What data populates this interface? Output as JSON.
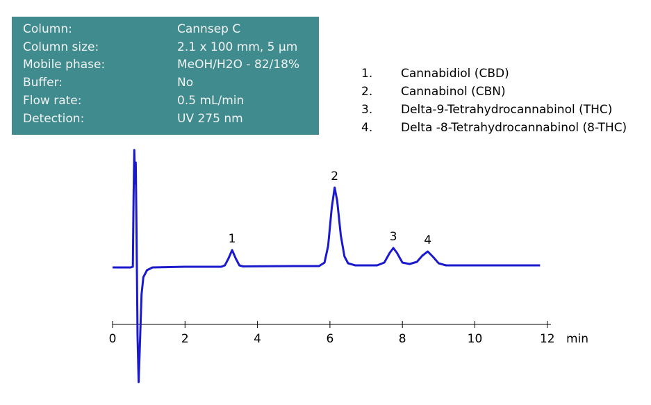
{
  "info_box": {
    "rows": [
      [
        "Column:",
        "Cannsep C"
      ],
      [
        "Column size:",
        "2.1 x 100 mm, 5 µm"
      ],
      [
        "Mobile phase:",
        "MeOH/H2O - 82/18%"
      ],
      [
        "Buffer:",
        "No"
      ],
      [
        "Flow  rate:",
        "0.5 mL/min"
      ],
      [
        "Detection:",
        "UV 275 nm"
      ]
    ]
  },
  "peak_list": [
    {
      "number": "1.",
      "name": "Cannabidiol (CBD)"
    },
    {
      "number": "2.",
      "name": "Cannabinol (CBN)"
    },
    {
      "number": "3.",
      "name": "Delta-9-Tetrahydrocannabinol  (THC)"
    },
    {
      "number": "4.",
      "name": "Delta -8-Tetrahydrocannabinol (8-THC)"
    }
  ],
  "chart_data": {
    "type": "line",
    "color": "#1a1acc",
    "x_label": "min",
    "x": [
      0,
      0.5,
      0.56,
      0.58,
      0.6,
      0.62,
      0.64,
      0.66,
      0.69,
      0.72,
      0.75,
      0.8,
      0.85,
      0.95,
      1.1,
      2,
      3.0,
      3.1,
      3.2,
      3.3,
      3.4,
      3.5,
      3.6,
      5.0,
      5.7,
      5.85,
      5.95,
      6.05,
      6.13,
      6.2,
      6.3,
      6.4,
      6.5,
      6.7,
      7.3,
      7.5,
      7.65,
      7.75,
      7.85,
      8.0,
      8.2,
      8.4,
      8.55,
      8.7,
      8.85,
      9.0,
      9.2,
      11.8
    ],
    "values": [
      -1,
      -1,
      0,
      100,
      168,
      120,
      150,
      60,
      -100,
      -166,
      -120,
      -40,
      -15,
      -5,
      -1,
      0,
      0,
      2,
      12,
      24,
      12,
      2,
      0.5,
      1,
      1,
      6,
      30,
      85,
      114,
      95,
      45,
      15,
      5,
      2,
      2,
      6,
      20,
      27,
      20,
      6,
      4,
      7,
      16,
      22,
      14,
      5,
      2,
      2
    ],
    "annotations": [
      {
        "text": "1",
        "x": 3.3
      },
      {
        "text": "2",
        "x": 6.13
      },
      {
        "text": "3",
        "x": 7.75
      },
      {
        "text": "4",
        "x": 8.7
      }
    ],
    "xlim": [
      0,
      12.1
    ],
    "xticks": [
      0,
      2,
      4,
      6,
      8,
      10,
      12
    ],
    "ylim": [
      -166,
      170
    ]
  }
}
